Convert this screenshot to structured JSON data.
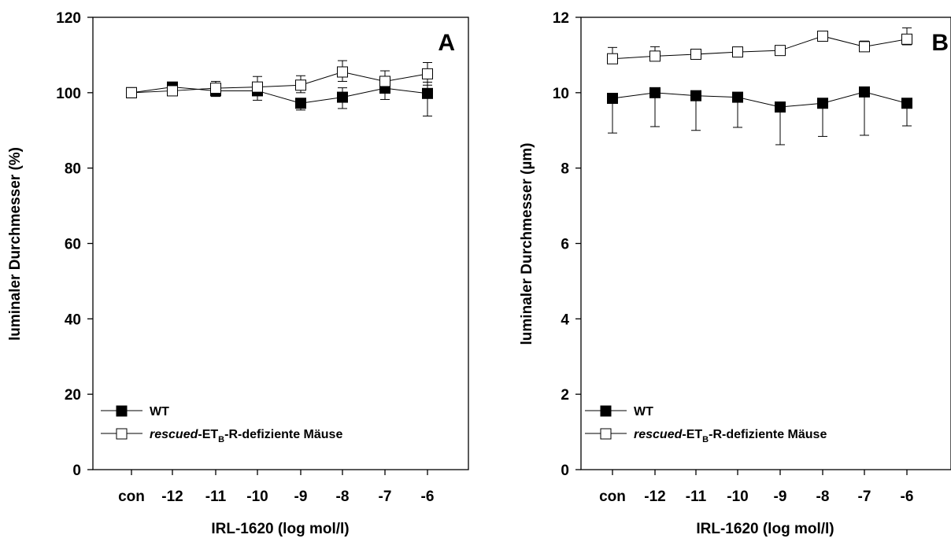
{
  "chart_data": [
    {
      "type": "line",
      "panel_letter": "A",
      "xlabel": "IRL-1620 (log mol/l)",
      "ylabel": "luminaler Durchmesser (%)",
      "categories": [
        "con",
        "-12",
        "-11",
        "-10",
        "-9",
        "-8",
        "-7",
        "-6"
      ],
      "ylim": [
        0,
        120
      ],
      "yticks": [
        0,
        20,
        40,
        60,
        80,
        100,
        120
      ],
      "legend_position": "bottom-left",
      "series": [
        {
          "name": "WT",
          "marker": "filled-square",
          "values": [
            100,
            101.5,
            100.5,
            100.5,
            97.2,
            98.8,
            101.2,
            99.8
          ],
          "err_up": [
            0,
            0.5,
            1.5,
            2.0,
            1.2,
            2.5,
            2.0,
            3.0
          ],
          "err_down": [
            0,
            0.5,
            1.5,
            2.5,
            1.8,
            3.0,
            3.0,
            6.0
          ]
        },
        {
          "name": "rescued-ETB-R-defiziente Mäuse",
          "marker": "open-square",
          "values": [
            100,
            100.5,
            101.2,
            101.5,
            102,
            105.5,
            103,
            105
          ],
          "err_up": [
            0,
            0.5,
            1.8,
            2.8,
            2.5,
            3.0,
            2.8,
            3.0
          ],
          "err_down": [
            0,
            0.5,
            1.5,
            2.0,
            2.0,
            2.5,
            2.5,
            3.0
          ]
        }
      ]
    },
    {
      "type": "line",
      "panel_letter": "B",
      "xlabel": "IRL-1620 (log mol/l)",
      "ylabel": "luminaler Durchmesser (µm)",
      "categories": [
        "con",
        "-12",
        "-11",
        "-10",
        "-9",
        "-8",
        "-7",
        "-6"
      ],
      "ylim": [
        0,
        12
      ],
      "yticks": [
        0,
        2,
        4,
        6,
        8,
        10,
        12
      ],
      "legend_position": "bottom-left",
      "series": [
        {
          "name": "WT",
          "marker": "filled-square",
          "values": [
            9.85,
            10.0,
            9.92,
            9.88,
            9.62,
            9.72,
            10.02,
            9.72
          ],
          "err_up": [
            0,
            0,
            0,
            0,
            0,
            0,
            0,
            0
          ],
          "err_down": [
            0.92,
            0.9,
            0.92,
            0.8,
            1.0,
            0.88,
            1.15,
            0.6
          ]
        },
        {
          "name": "rescued-ETB-R-defiziente Mäuse",
          "marker": "open-square",
          "values": [
            10.9,
            10.97,
            11.02,
            11.08,
            11.12,
            11.5,
            11.22,
            11.42
          ],
          "err_up": [
            0.3,
            0.25,
            0.1,
            0.1,
            0.1,
            0.05,
            0.15,
            0.3
          ],
          "err_down": [
            0.1,
            0.1,
            0.05,
            0.05,
            0.05,
            0.05,
            0.1,
            0.15
          ]
        }
      ]
    }
  ]
}
